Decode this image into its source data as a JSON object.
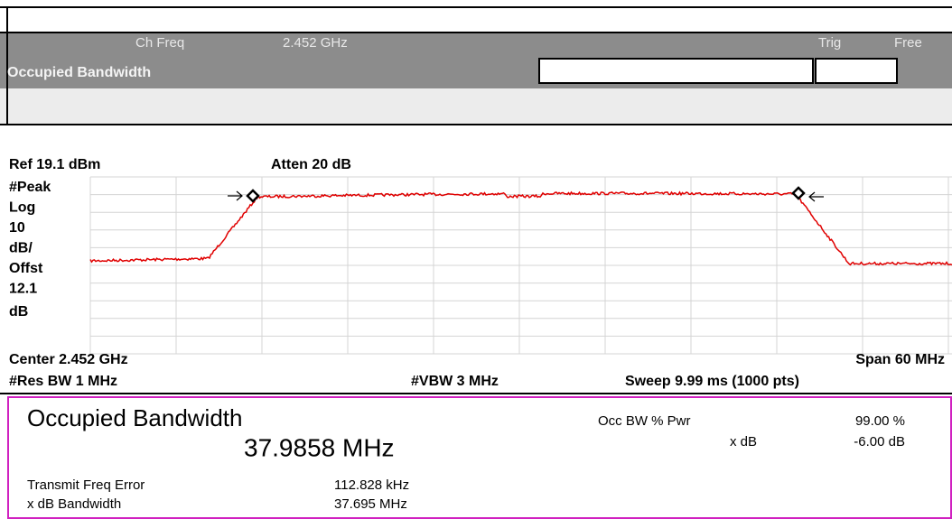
{
  "header": {
    "ch_freq_label": "Ch Freq",
    "ch_freq": "2.452 GHz",
    "trig_label": "Trig",
    "trig": "Free",
    "mode": "Occupied Bandwidth"
  },
  "display": {
    "ref": "Ref 19.1 dBm",
    "atten": "Atten 20 dB",
    "scale_labels": [
      "#Peak",
      "Log",
      "10",
      "dB/",
      "Offst",
      "12.1",
      "dB"
    ],
    "center": "Center 2.452 GHz",
    "span": "Span 60 MHz",
    "res_bw": "#Res BW 1 MHz",
    "vbw": "#VBW 3 MHz",
    "sweep": "Sweep 9.99 ms (1000 pts)"
  },
  "results": {
    "title": "Occupied Bandwidth",
    "value": "37.9858 MHz",
    "params": [
      {
        "label": "Occ BW % Pwr",
        "value": "99.00 %"
      },
      {
        "label": "x dB",
        "value": "-6.00 dB"
      }
    ],
    "rows": [
      {
        "label": "Transmit Freq Error",
        "value": "112.828 kHz"
      },
      {
        "label": "x dB Bandwidth",
        "value": "37.695 MHz"
      }
    ]
  }
}
